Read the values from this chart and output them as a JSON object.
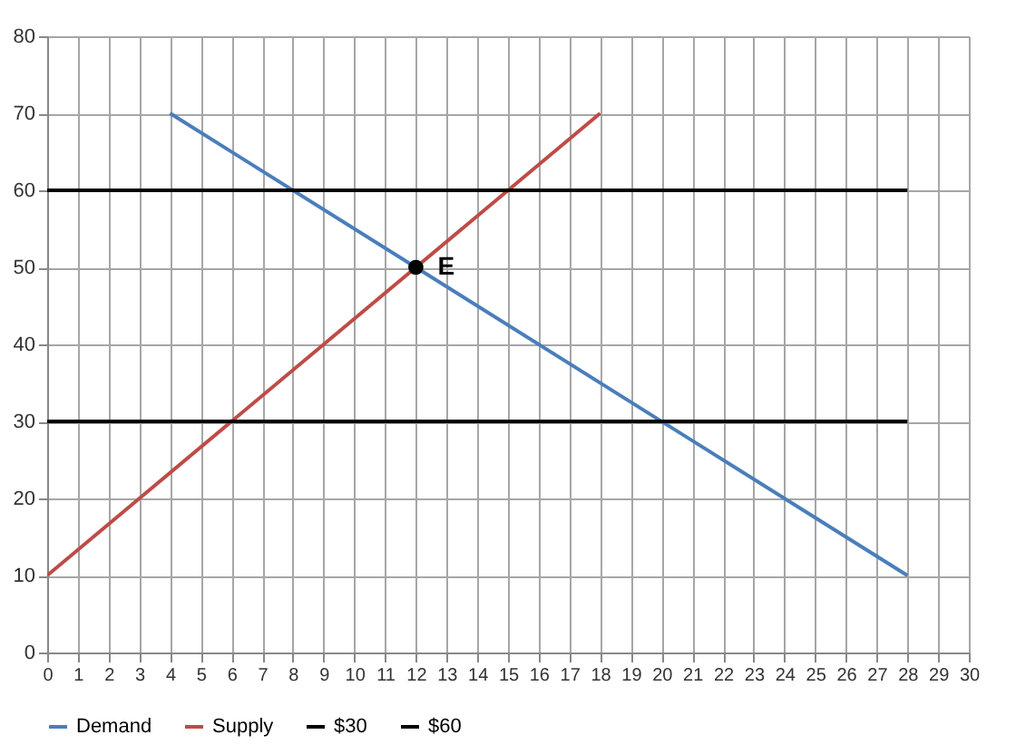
{
  "chart_data": {
    "type": "line",
    "xlim": [
      0,
      30
    ],
    "ylim": [
      0,
      80
    ],
    "xticks": [
      0,
      1,
      2,
      3,
      4,
      5,
      6,
      7,
      8,
      9,
      10,
      11,
      12,
      13,
      14,
      15,
      16,
      17,
      18,
      19,
      20,
      21,
      22,
      23,
      24,
      25,
      26,
      27,
      28,
      29,
      30
    ],
    "yticks": [
      0,
      10,
      20,
      30,
      40,
      50,
      60,
      70,
      80
    ],
    "grid": true,
    "legend": "bottom",
    "series": [
      {
        "name": "Demand",
        "color": "#4a7ebb",
        "x": [
          4,
          28
        ],
        "values": [
          70,
          10
        ]
      },
      {
        "name": "Supply",
        "color": "#be4b48",
        "x": [
          0,
          18
        ],
        "values": [
          10,
          70
        ]
      },
      {
        "name": "$30",
        "color": "#000000",
        "x": [
          0,
          28
        ],
        "values": [
          30,
          30
        ]
      },
      {
        "name": "$60",
        "color": "#000000",
        "x": [
          0,
          28
        ],
        "values": [
          60,
          60
        ]
      },
      {
        "type": "scatter",
        "color": "#000000",
        "x": [
          12
        ],
        "values": [
          50
        ]
      }
    ],
    "annotations": [
      {
        "text": "E",
        "x": 12,
        "y": 50
      }
    ]
  }
}
